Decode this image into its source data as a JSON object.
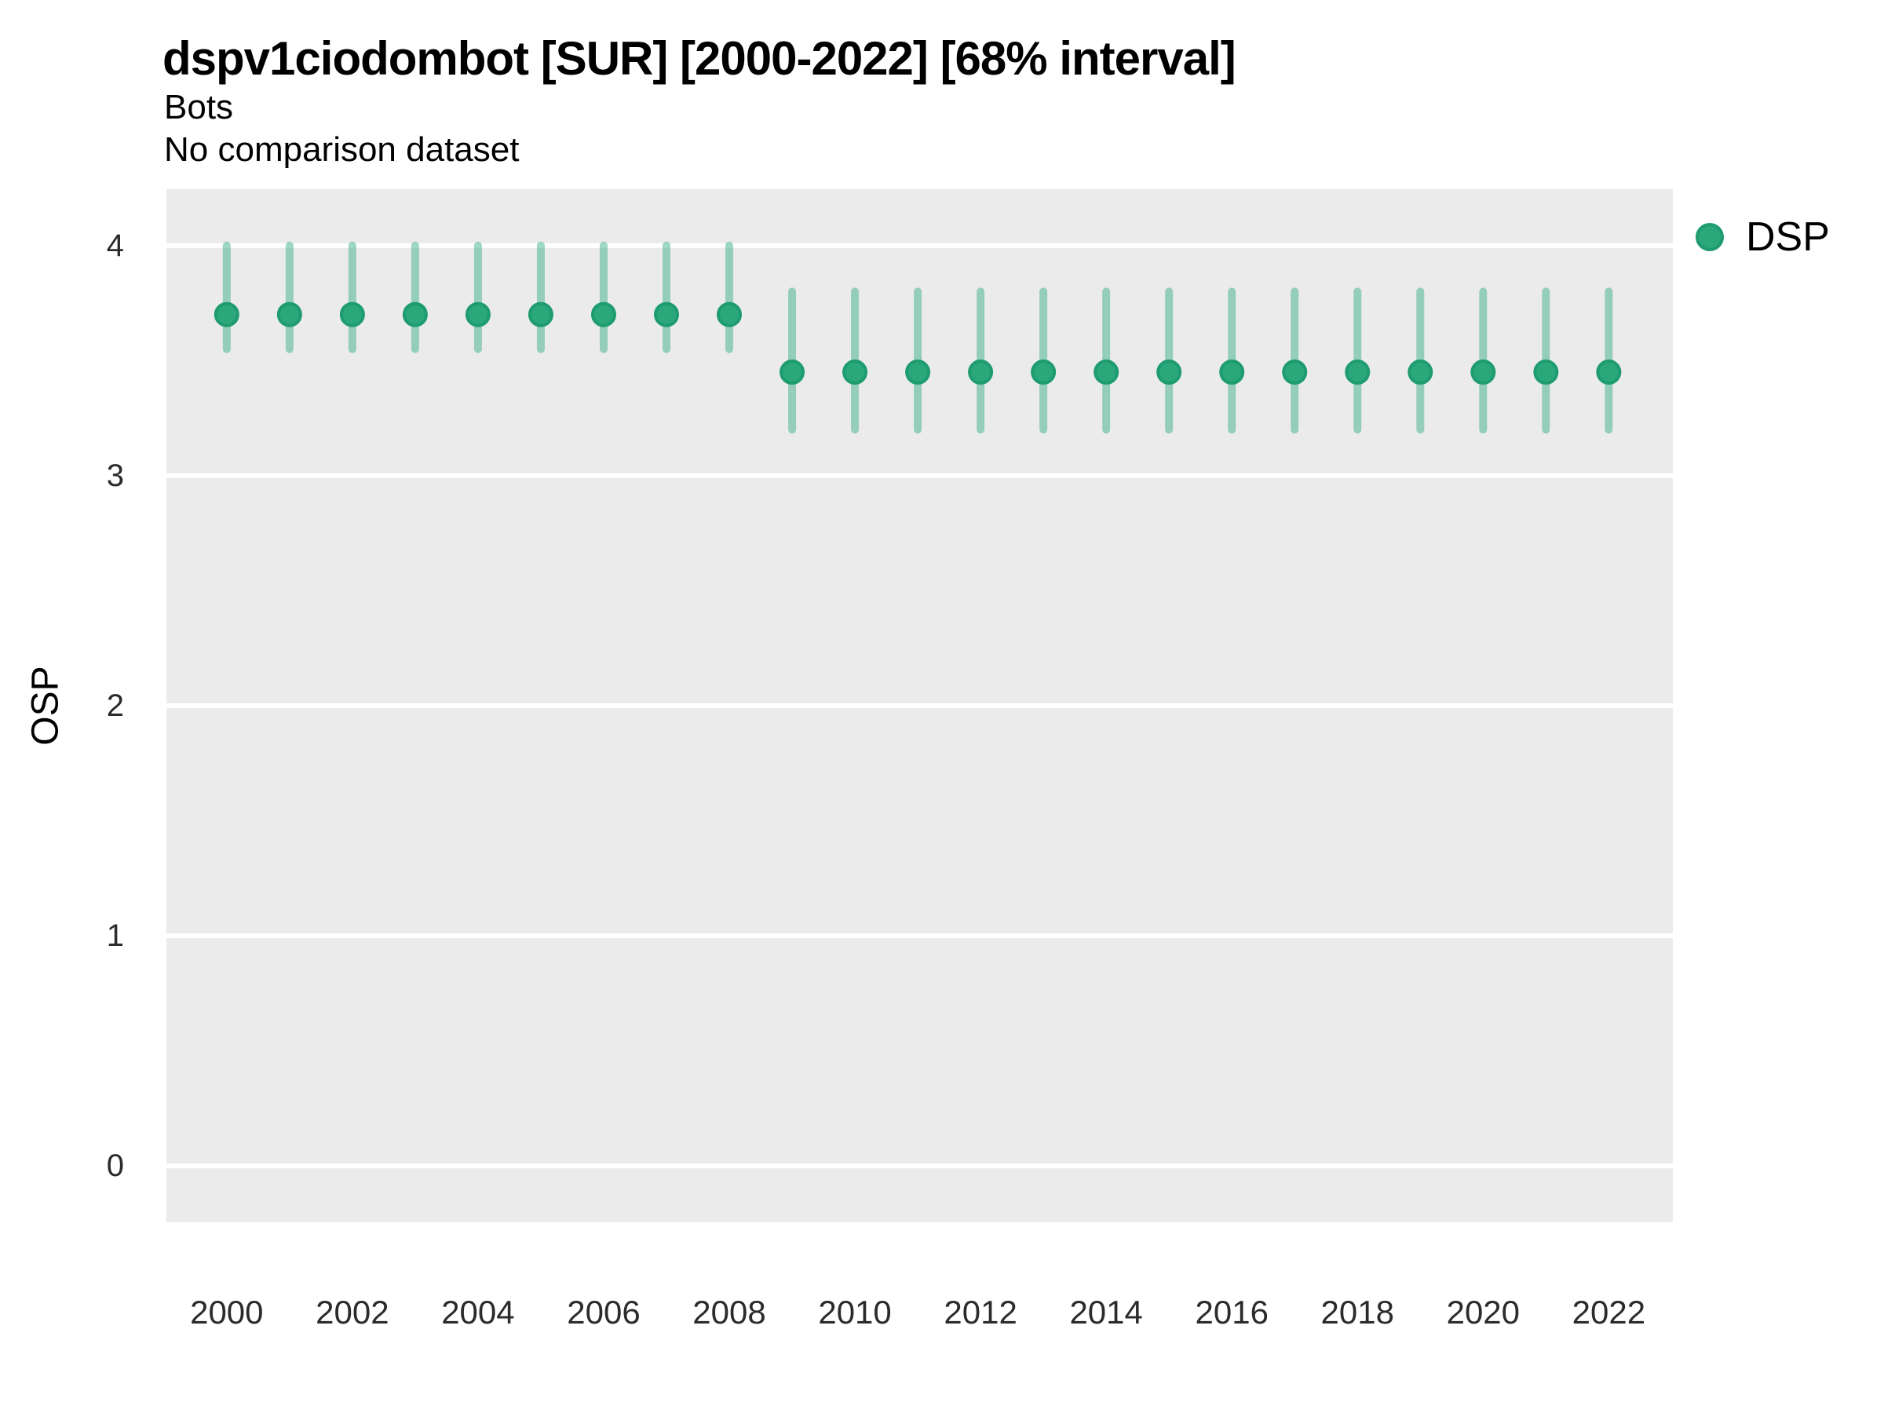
{
  "header": {
    "title": "dspv1ciodombot [SUR] [2000-2022] [68% interval]",
    "subtitle1": "Bots",
    "subtitle2": "No comparison dataset"
  },
  "chart_data": {
    "type": "scatter",
    "variant": "pointrange",
    "title": "dspv1ciodombot [SUR] [2000-2022] [68% interval]",
    "subtitle": [
      "Bots",
      "No comparison dataset"
    ],
    "xlabel": "",
    "ylabel": "OSP",
    "legend_position": "right",
    "legend": [
      {
        "label": "DSP"
      }
    ],
    "grid": "horizontal major gridlines only, white on grey panel",
    "xlim": [
      1999.04,
      2023.02
    ],
    "ylim": [
      -0.245,
      4.245
    ],
    "xticks": [
      2000,
      2002,
      2004,
      2006,
      2008,
      2010,
      2012,
      2014,
      2016,
      2018,
      2020,
      2022
    ],
    "yticks": [
      0,
      1,
      2,
      3,
      4
    ],
    "colors": {
      "point_fill": "#2AA87C",
      "point_stroke": "#1E9C70",
      "interval": "rgba(42, 168, 124, 0.45)",
      "panel_bg": "#EBEBEB",
      "gridline": "#FFFFFF"
    },
    "series": [
      {
        "name": "DSP",
        "points": [
          {
            "x": 2000,
            "y": 3.7,
            "lo": 3.55,
            "hi": 4.0
          },
          {
            "x": 2001,
            "y": 3.7,
            "lo": 3.55,
            "hi": 4.0
          },
          {
            "x": 2002,
            "y": 3.7,
            "lo": 3.55,
            "hi": 4.0
          },
          {
            "x": 2003,
            "y": 3.7,
            "lo": 3.55,
            "hi": 4.0
          },
          {
            "x": 2004,
            "y": 3.7,
            "lo": 3.55,
            "hi": 4.0
          },
          {
            "x": 2005,
            "y": 3.7,
            "lo": 3.55,
            "hi": 4.0
          },
          {
            "x": 2006,
            "y": 3.7,
            "lo": 3.55,
            "hi": 4.0
          },
          {
            "x": 2007,
            "y": 3.7,
            "lo": 3.55,
            "hi": 4.0
          },
          {
            "x": 2008,
            "y": 3.7,
            "lo": 3.55,
            "hi": 4.0
          },
          {
            "x": 2009,
            "y": 3.45,
            "lo": 3.2,
            "hi": 3.8
          },
          {
            "x": 2010,
            "y": 3.45,
            "lo": 3.2,
            "hi": 3.8
          },
          {
            "x": 2011,
            "y": 3.45,
            "lo": 3.2,
            "hi": 3.8
          },
          {
            "x": 2012,
            "y": 3.45,
            "lo": 3.2,
            "hi": 3.8
          },
          {
            "x": 2013,
            "y": 3.45,
            "lo": 3.2,
            "hi": 3.8
          },
          {
            "x": 2014,
            "y": 3.45,
            "lo": 3.2,
            "hi": 3.8
          },
          {
            "x": 2015,
            "y": 3.45,
            "lo": 3.2,
            "hi": 3.8
          },
          {
            "x": 2016,
            "y": 3.45,
            "lo": 3.2,
            "hi": 3.8
          },
          {
            "x": 2017,
            "y": 3.45,
            "lo": 3.2,
            "hi": 3.8
          },
          {
            "x": 2018,
            "y": 3.45,
            "lo": 3.2,
            "hi": 3.8
          },
          {
            "x": 2019,
            "y": 3.45,
            "lo": 3.2,
            "hi": 3.8
          },
          {
            "x": 2020,
            "y": 3.45,
            "lo": 3.2,
            "hi": 3.8
          },
          {
            "x": 2021,
            "y": 3.45,
            "lo": 3.2,
            "hi": 3.8
          },
          {
            "x": 2022,
            "y": 3.45,
            "lo": 3.2,
            "hi": 3.8
          }
        ]
      }
    ]
  }
}
